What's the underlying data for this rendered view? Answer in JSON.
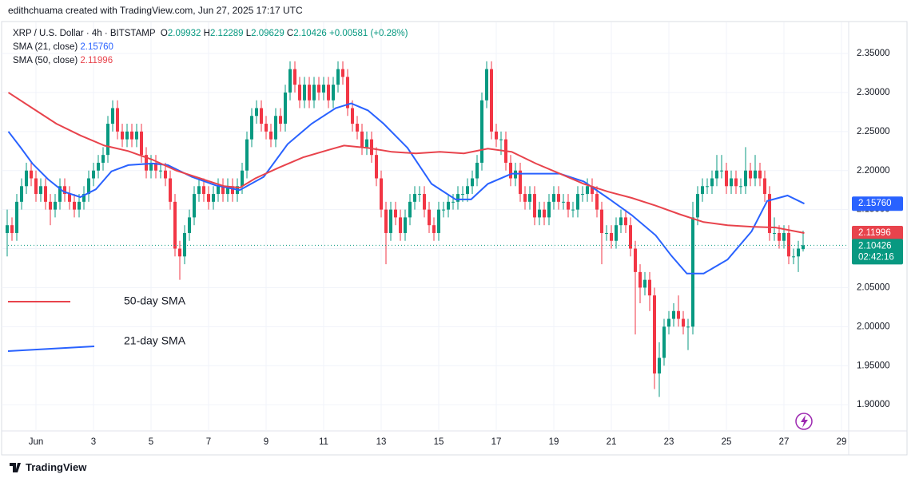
{
  "attribution": "edithchuama created with TradingView.com, Jun 27, 2025 17:17 UTC",
  "brand": "TradingView",
  "chart_data": {
    "type": "candlestick",
    "title": "XRP / U.S. Dollar · 4h · BITSTAMP",
    "ohlc_letters": [
      "O",
      "H",
      "L",
      "C"
    ],
    "change": "+0.00581 (+0.28%)",
    "countdown": "02:42:16",
    "up_color": "#089981",
    "down_color": "#f23645",
    "grid": true,
    "xlim": [
      0.67,
      702
    ],
    "ylim": [
      1.8664,
      2.3899
    ],
    "xticks": [
      {
        "value": 24,
        "label": "Jun"
      },
      {
        "value": 72,
        "label": "3"
      },
      {
        "value": 120,
        "label": "5"
      },
      {
        "value": 168,
        "label": "7"
      },
      {
        "value": 216,
        "label": "9"
      },
      {
        "value": 264,
        "label": "11"
      },
      {
        "value": 312,
        "label": "13"
      },
      {
        "value": 360,
        "label": "15"
      },
      {
        "value": 408,
        "label": "17"
      },
      {
        "value": 456,
        "label": "19"
      },
      {
        "value": 504,
        "label": "21"
      },
      {
        "value": 552,
        "label": "23"
      },
      {
        "value": 600,
        "label": "25"
      },
      {
        "value": 648,
        "label": "27"
      },
      {
        "value": 696,
        "label": "29"
      }
    ],
    "yticks": [
      {
        "value": 1.9,
        "label": "1.90000"
      },
      {
        "value": 1.95,
        "label": "1.95000"
      },
      {
        "value": 2.0,
        "label": "2.00000"
      },
      {
        "value": 2.05,
        "label": "2.05000"
      },
      {
        "value": 2.1,
        "label": "2.10000"
      },
      {
        "value": 2.15,
        "label": "2.15000"
      },
      {
        "value": 2.2,
        "label": "2.20000"
      },
      {
        "value": 2.25,
        "label": "2.25000"
      },
      {
        "value": 2.3,
        "label": "2.30000"
      },
      {
        "value": 2.35,
        "label": "2.35000"
      }
    ],
    "x": [
      0,
      4,
      8,
      12,
      16,
      20,
      24,
      28,
      32,
      36,
      40,
      44,
      48,
      52,
      56,
      60,
      64,
      68,
      72,
      76,
      80,
      84,
      88,
      92,
      96,
      100,
      104,
      108,
      112,
      116,
      120,
      124,
      128,
      132,
      136,
      140,
      144,
      148,
      152,
      156,
      160,
      164,
      168,
      172,
      176,
      180,
      184,
      188,
      192,
      196,
      200,
      204,
      208,
      212,
      216,
      220,
      224,
      228,
      232,
      236,
      240,
      244,
      248,
      252,
      256,
      260,
      264,
      268,
      272,
      276,
      280,
      284,
      288,
      292,
      296,
      300,
      304,
      308,
      312,
      316,
      320,
      324,
      328,
      332,
      336,
      340,
      344,
      348,
      352,
      356,
      360,
      364,
      368,
      372,
      376,
      380,
      384,
      388,
      392,
      396,
      400,
      404,
      408,
      412,
      416,
      420,
      424,
      428,
      432,
      436,
      440,
      444,
      448,
      452,
      456,
      460,
      464,
      468,
      472,
      476,
      480,
      484,
      488,
      492,
      496,
      500,
      504,
      508,
      512,
      516,
      520,
      524,
      528,
      532,
      536,
      540,
      544,
      548,
      552,
      556,
      560,
      564,
      568,
      572,
      576,
      580,
      584,
      588,
      592,
      596,
      600,
      604,
      608,
      612,
      616,
      620,
      624,
      628,
      632,
      636,
      640,
      644,
      648,
      652,
      656,
      660,
      664
    ],
    "candles": [
      [
        2.12,
        2.15,
        2.09,
        2.13
      ],
      [
        2.13,
        2.14,
        2.11,
        2.12
      ],
      [
        2.12,
        2.17,
        2.11,
        2.16
      ],
      [
        2.16,
        2.19,
        2.15,
        2.18
      ],
      [
        2.18,
        2.21,
        2.17,
        2.2
      ],
      [
        2.2,
        2.21,
        2.18,
        2.19
      ],
      [
        2.19,
        2.2,
        2.16,
        2.17
      ],
      [
        2.17,
        2.19,
        2.16,
        2.18
      ],
      [
        2.18,
        2.19,
        2.15,
        2.16
      ],
      [
        2.16,
        2.17,
        2.13,
        2.15
      ],
      [
        2.15,
        2.17,
        2.14,
        2.16
      ],
      [
        2.16,
        2.19,
        2.15,
        2.18
      ],
      [
        2.18,
        2.19,
        2.16,
        2.17
      ],
      [
        2.17,
        2.18,
        2.15,
        2.16
      ],
      [
        2.16,
        2.17,
        2.14,
        2.15
      ],
      [
        2.15,
        2.17,
        2.14,
        2.16
      ],
      [
        2.16,
        2.18,
        2.15,
        2.17
      ],
      [
        2.17,
        2.2,
        2.16,
        2.19
      ],
      [
        2.19,
        2.21,
        2.18,
        2.2
      ],
      [
        2.2,
        2.22,
        2.19,
        2.21
      ],
      [
        2.21,
        2.23,
        2.2,
        2.22
      ],
      [
        2.22,
        2.27,
        2.21,
        2.26
      ],
      [
        2.26,
        2.29,
        2.25,
        2.28
      ],
      [
        2.28,
        2.29,
        2.24,
        2.25
      ],
      [
        2.25,
        2.26,
        2.23,
        2.24
      ],
      [
        2.24,
        2.26,
        2.23,
        2.25
      ],
      [
        2.25,
        2.26,
        2.23,
        2.24
      ],
      [
        2.24,
        2.26,
        2.23,
        2.25
      ],
      [
        2.25,
        2.26,
        2.21,
        2.22
      ],
      [
        2.22,
        2.23,
        2.19,
        2.2
      ],
      [
        2.2,
        2.22,
        2.19,
        2.21
      ],
      [
        2.21,
        2.22,
        2.19,
        2.2
      ],
      [
        2.2,
        2.21,
        2.19,
        2.2
      ],
      [
        2.2,
        2.21,
        2.18,
        2.19
      ],
      [
        2.19,
        2.2,
        2.15,
        2.16
      ],
      [
        2.16,
        2.17,
        2.09,
        2.1
      ],
      [
        2.1,
        2.11,
        2.06,
        2.09
      ],
      [
        2.09,
        2.13,
        2.08,
        2.12
      ],
      [
        2.12,
        2.15,
        2.11,
        2.14
      ],
      [
        2.14,
        2.18,
        2.13,
        2.17
      ],
      [
        2.17,
        2.19,
        2.16,
        2.18
      ],
      [
        2.18,
        2.19,
        2.16,
        2.17
      ],
      [
        2.17,
        2.18,
        2.15,
        2.16
      ],
      [
        2.16,
        2.18,
        2.15,
        2.17
      ],
      [
        2.17,
        2.19,
        2.16,
        2.18
      ],
      [
        2.18,
        2.19,
        2.16,
        2.17
      ],
      [
        2.17,
        2.19,
        2.16,
        2.18
      ],
      [
        2.18,
        2.19,
        2.16,
        2.17
      ],
      [
        2.17,
        2.19,
        2.16,
        2.18
      ],
      [
        2.18,
        2.21,
        2.17,
        2.2
      ],
      [
        2.2,
        2.25,
        2.19,
        2.24
      ],
      [
        2.24,
        2.28,
        2.23,
        2.27
      ],
      [
        2.27,
        2.29,
        2.26,
        2.28
      ],
      [
        2.28,
        2.29,
        2.25,
        2.26
      ],
      [
        2.26,
        2.27,
        2.24,
        2.25
      ],
      [
        2.25,
        2.26,
        2.23,
        2.24
      ],
      [
        2.24,
        2.28,
        2.23,
        2.27
      ],
      [
        2.27,
        2.28,
        2.25,
        2.26
      ],
      [
        2.26,
        2.31,
        2.25,
        2.3
      ],
      [
        2.3,
        2.34,
        2.29,
        2.33
      ],
      [
        2.33,
        2.34,
        2.3,
        2.31
      ],
      [
        2.31,
        2.32,
        2.28,
        2.29
      ],
      [
        2.29,
        2.32,
        2.28,
        2.31
      ],
      [
        2.31,
        2.32,
        2.28,
        2.29
      ],
      [
        2.29,
        2.32,
        2.28,
        2.31
      ],
      [
        2.31,
        2.32,
        2.29,
        2.3
      ],
      [
        2.3,
        2.32,
        2.29,
        2.31
      ],
      [
        2.31,
        2.32,
        2.28,
        2.29
      ],
      [
        2.29,
        2.32,
        2.28,
        2.31
      ],
      [
        2.31,
        2.34,
        2.3,
        2.33
      ],
      [
        2.33,
        2.34,
        2.31,
        2.32
      ],
      [
        2.32,
        2.33,
        2.27,
        2.28
      ],
      [
        2.28,
        2.29,
        2.25,
        2.26
      ],
      [
        2.26,
        2.27,
        2.24,
        2.25
      ],
      [
        2.25,
        2.26,
        2.22,
        2.23
      ],
      [
        2.23,
        2.25,
        2.22,
        2.24
      ],
      [
        2.24,
        2.25,
        2.21,
        2.22
      ],
      [
        2.22,
        2.23,
        2.18,
        2.19
      ],
      [
        2.19,
        2.2,
        2.14,
        2.15
      ],
      [
        2.15,
        2.16,
        2.08,
        2.12
      ],
      [
        2.12,
        2.16,
        2.11,
        2.15
      ],
      [
        2.15,
        2.16,
        2.13,
        2.14
      ],
      [
        2.14,
        2.15,
        2.11,
        2.12
      ],
      [
        2.12,
        2.15,
        2.11,
        2.14
      ],
      [
        2.14,
        2.17,
        2.13,
        2.16
      ],
      [
        2.16,
        2.18,
        2.15,
        2.17
      ],
      [
        2.17,
        2.18,
        2.16,
        2.17
      ],
      [
        2.17,
        2.18,
        2.14,
        2.15
      ],
      [
        2.15,
        2.16,
        2.12,
        2.13
      ],
      [
        2.13,
        2.14,
        2.11,
        2.12
      ],
      [
        2.12,
        2.16,
        2.11,
        2.15
      ],
      [
        2.15,
        2.16,
        2.14,
        2.15
      ],
      [
        2.15,
        2.17,
        2.14,
        2.16
      ],
      [
        2.16,
        2.17,
        2.15,
        2.16
      ],
      [
        2.16,
        2.18,
        2.15,
        2.17
      ],
      [
        2.17,
        2.18,
        2.16,
        2.17
      ],
      [
        2.17,
        2.19,
        2.16,
        2.18
      ],
      [
        2.18,
        2.2,
        2.17,
        2.19
      ],
      [
        2.19,
        2.22,
        2.18,
        2.21
      ],
      [
        2.21,
        2.3,
        2.2,
        2.29
      ],
      [
        2.29,
        2.34,
        2.28,
        2.33
      ],
      [
        2.33,
        2.34,
        2.24,
        2.25
      ],
      [
        2.25,
        2.26,
        2.23,
        2.24
      ],
      [
        2.24,
        2.25,
        2.22,
        2.24
      ],
      [
        2.24,
        2.25,
        2.2,
        2.21
      ],
      [
        2.21,
        2.22,
        2.18,
        2.19
      ],
      [
        2.19,
        2.21,
        2.18,
        2.2
      ],
      [
        2.2,
        2.21,
        2.16,
        2.17
      ],
      [
        2.17,
        2.18,
        2.15,
        2.16
      ],
      [
        2.16,
        2.18,
        2.15,
        2.17
      ],
      [
        2.17,
        2.18,
        2.13,
        2.14
      ],
      [
        2.14,
        2.16,
        2.13,
        2.15
      ],
      [
        2.15,
        2.16,
        2.13,
        2.14
      ],
      [
        2.14,
        2.17,
        2.13,
        2.16
      ],
      [
        2.16,
        2.18,
        2.15,
        2.17
      ],
      [
        2.17,
        2.18,
        2.15,
        2.16
      ],
      [
        2.16,
        2.17,
        2.15,
        2.16
      ],
      [
        2.16,
        2.17,
        2.14,
        2.15
      ],
      [
        2.15,
        2.16,
        2.14,
        2.15
      ],
      [
        2.15,
        2.18,
        2.14,
        2.17
      ],
      [
        2.17,
        2.18,
        2.16,
        2.17
      ],
      [
        2.17,
        2.19,
        2.16,
        2.18
      ],
      [
        2.18,
        2.19,
        2.16,
        2.17
      ],
      [
        2.17,
        2.18,
        2.14,
        2.15
      ],
      [
        2.15,
        2.16,
        2.08,
        2.12
      ],
      [
        2.12,
        2.13,
        2.11,
        2.12
      ],
      [
        2.12,
        2.13,
        2.1,
        2.11
      ],
      [
        2.11,
        2.14,
        2.1,
        2.13
      ],
      [
        2.13,
        2.15,
        2.12,
        2.14
      ],
      [
        2.14,
        2.15,
        2.12,
        2.13
      ],
      [
        2.13,
        2.14,
        2.09,
        2.1
      ],
      [
        2.1,
        2.11,
        1.99,
        2.07
      ],
      [
        2.07,
        2.08,
        2.03,
        2.05
      ],
      [
        2.05,
        2.07,
        2.04,
        2.06
      ],
      [
        2.06,
        2.07,
        2.02,
        2.04
      ],
      [
        2.04,
        2.05,
        1.92,
        1.94
      ],
      [
        1.94,
        1.98,
        1.91,
        1.96
      ],
      [
        1.96,
        2.01,
        1.95,
        2.0
      ],
      [
        2.0,
        2.02,
        1.99,
        2.01
      ],
      [
        2.01,
        2.03,
        2.0,
        2.02
      ],
      [
        2.02,
        2.04,
        2.0,
        2.01
      ],
      [
        2.01,
        2.02,
        1.99,
        2.0
      ],
      [
        2.0,
        2.01,
        1.97,
        2.0
      ],
      [
        2.0,
        2.16,
        1.99,
        2.14
      ],
      [
        2.14,
        2.18,
        2.13,
        2.17
      ],
      [
        2.17,
        2.19,
        2.16,
        2.18
      ],
      [
        2.18,
        2.19,
        2.17,
        2.18
      ],
      [
        2.18,
        2.2,
        2.17,
        2.19
      ],
      [
        2.19,
        2.22,
        2.18,
        2.2
      ],
      [
        2.2,
        2.22,
        2.19,
        2.2
      ],
      [
        2.2,
        2.21,
        2.17,
        2.18
      ],
      [
        2.18,
        2.2,
        2.17,
        2.19
      ],
      [
        2.19,
        2.2,
        2.17,
        2.18
      ],
      [
        2.18,
        2.19,
        2.17,
        2.18
      ],
      [
        2.18,
        2.23,
        2.17,
        2.2
      ],
      [
        2.2,
        2.21,
        2.18,
        2.19
      ],
      [
        2.19,
        2.22,
        2.18,
        2.2
      ],
      [
        2.2,
        2.21,
        2.18,
        2.19
      ],
      [
        2.19,
        2.2,
        2.16,
        2.17
      ],
      [
        2.17,
        2.18,
        2.11,
        2.12
      ],
      [
        2.12,
        2.14,
        2.11,
        2.12
      ],
      [
        2.12,
        2.13,
        2.1,
        2.11
      ],
      [
        2.11,
        2.13,
        2.1,
        2.12
      ],
      [
        2.12,
        2.13,
        2.08,
        2.09
      ],
      [
        2.09,
        2.1,
        2.08,
        2.09
      ],
      [
        2.09,
        2.11,
        2.07,
        2.1
      ],
      [
        2.09932,
        2.12289,
        2.09629,
        2.10426
      ]
    ],
    "series": [
      {
        "name": "SMA (21, close)",
        "color": "#2962ff",
        "value_label": "2.15760",
        "x": [
          1,
          11,
          21,
          34,
          47,
          61,
          74,
          87,
          101,
          121,
          134,
          154,
          174,
          194,
          214,
          234,
          254,
          274,
          287,
          301,
          314,
          334,
          354,
          374,
          387,
          401,
          421,
          441,
          461,
          481,
          501,
          521,
          541,
          554,
          567,
          581,
          601,
          621,
          634,
          651,
          665
        ],
        "values": [
          2.25,
          2.23,
          2.209,
          2.189,
          2.173,
          2.166,
          2.176,
          2.199,
          2.207,
          2.209,
          2.207,
          2.192,
          2.181,
          2.175,
          2.192,
          2.234,
          2.26,
          2.28,
          2.286,
          2.277,
          2.26,
          2.229,
          2.183,
          2.163,
          2.163,
          2.183,
          2.196,
          2.196,
          2.196,
          2.186,
          2.165,
          2.143,
          2.117,
          2.091,
          2.068,
          2.068,
          2.086,
          2.122,
          2.161,
          2.168,
          2.1576
        ]
      },
      {
        "name": "SMA (50, close)",
        "color": "#e8434c",
        "value_label": "2.11996",
        "x": [
          1,
          21,
          41,
          61,
          81,
          101,
          121,
          141,
          161,
          181,
          194,
          207,
          227,
          247,
          267,
          281,
          301,
          321,
          341,
          361,
          381,
          401,
          421,
          441,
          461,
          481,
          501,
          521,
          541,
          561,
          581,
          601,
          621,
          641,
          665
        ],
        "values": [
          2.3,
          2.28,
          2.26,
          2.245,
          2.232,
          2.225,
          2.214,
          2.2,
          2.19,
          2.18,
          2.178,
          2.19,
          2.204,
          2.217,
          2.226,
          2.232,
          2.229,
          2.224,
          2.222,
          2.224,
          2.222,
          2.228,
          2.224,
          2.209,
          2.196,
          2.183,
          2.173,
          2.165,
          2.155,
          2.144,
          2.134,
          2.13,
          2.128,
          2.127,
          2.11996
        ]
      }
    ],
    "annotations": [
      {
        "text": "50-day SMA",
        "color": "#e8434c"
      },
      {
        "text": "21-day SMA",
        "color": "#2962ff"
      }
    ]
  }
}
